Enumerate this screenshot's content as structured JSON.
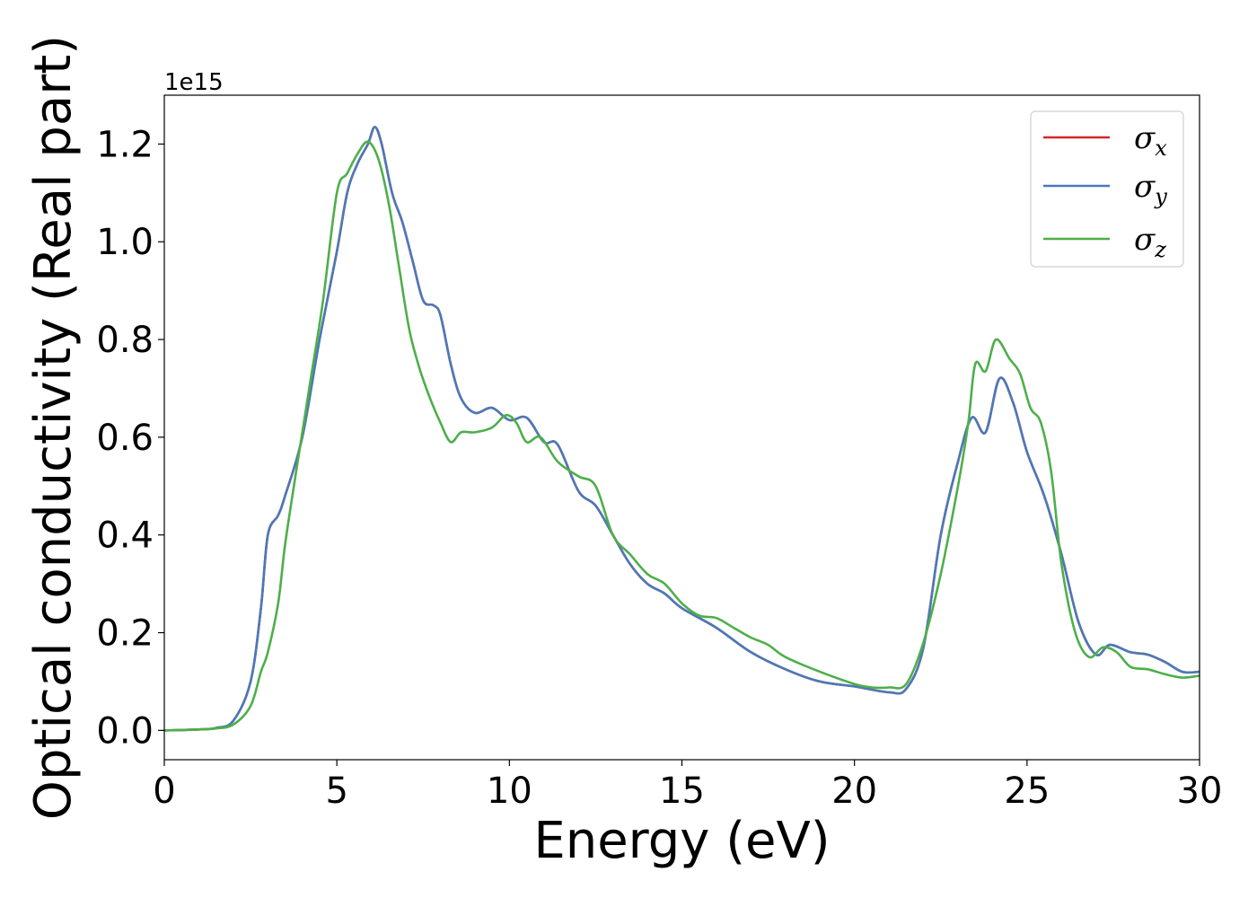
{
  "chart_data": {
    "type": "line",
    "title": "",
    "xlabel": "Energy (eV)",
    "ylabel": "Optical conductivity (Real part)",
    "y_offset_label": "1e15",
    "xlim": [
      0,
      30
    ],
    "ylim": [
      -0.06,
      1.3
    ],
    "xticks": [
      0,
      5,
      10,
      15,
      20,
      25,
      30
    ],
    "xtick_labels": [
      "0",
      "5",
      "10",
      "15",
      "20",
      "25",
      "30"
    ],
    "yticks": [
      0.0,
      0.2,
      0.4,
      0.6,
      0.8,
      1.0,
      1.2
    ],
    "ytick_labels": [
      "0.0",
      "0.2",
      "0.4",
      "0.6",
      "0.8",
      "1.0",
      "1.2"
    ],
    "grid": false,
    "legend_position": "top-right",
    "series": [
      {
        "name": "σ",
        "subscript": "x",
        "color": "#d62728",
        "points": [
          [
            0,
            0
          ],
          [
            1,
            0.002
          ],
          [
            1.5,
            0.005
          ],
          [
            2,
            0.02
          ],
          [
            2.5,
            0.1
          ],
          [
            2.8,
            0.25
          ],
          [
            3.0,
            0.4
          ],
          [
            3.3,
            0.44
          ],
          [
            3.5,
            0.48
          ],
          [
            4.0,
            0.6
          ],
          [
            4.5,
            0.8
          ],
          [
            5.0,
            0.98
          ],
          [
            5.3,
            1.1
          ],
          [
            5.6,
            1.16
          ],
          [
            5.9,
            1.2
          ],
          [
            6.1,
            1.235
          ],
          [
            6.3,
            1.2
          ],
          [
            6.6,
            1.1
          ],
          [
            6.9,
            1.04
          ],
          [
            7.2,
            0.96
          ],
          [
            7.5,
            0.88
          ],
          [
            7.8,
            0.87
          ],
          [
            8.0,
            0.85
          ],
          [
            8.3,
            0.75
          ],
          [
            8.6,
            0.68
          ],
          [
            9.0,
            0.65
          ],
          [
            9.5,
            0.66
          ],
          [
            10.0,
            0.635
          ],
          [
            10.5,
            0.64
          ],
          [
            11.0,
            0.59
          ],
          [
            11.4,
            0.585
          ],
          [
            12.0,
            0.49
          ],
          [
            12.5,
            0.46
          ],
          [
            13.0,
            0.4
          ],
          [
            13.5,
            0.34
          ],
          [
            14.0,
            0.3
          ],
          [
            14.5,
            0.28
          ],
          [
            15.0,
            0.25
          ],
          [
            16.0,
            0.21
          ],
          [
            17.0,
            0.16
          ],
          [
            18.0,
            0.125
          ],
          [
            19.0,
            0.1
          ],
          [
            20.0,
            0.09
          ],
          [
            21.0,
            0.078
          ],
          [
            21.5,
            0.085
          ],
          [
            22.0,
            0.17
          ],
          [
            22.5,
            0.4
          ],
          [
            23.0,
            0.55
          ],
          [
            23.4,
            0.64
          ],
          [
            23.8,
            0.61
          ],
          [
            24.2,
            0.72
          ],
          [
            24.6,
            0.67
          ],
          [
            25.0,
            0.57
          ],
          [
            25.5,
            0.48
          ],
          [
            26.0,
            0.36
          ],
          [
            26.5,
            0.22
          ],
          [
            27.0,
            0.155
          ],
          [
            27.4,
            0.175
          ],
          [
            28.0,
            0.16
          ],
          [
            28.5,
            0.155
          ],
          [
            29.0,
            0.14
          ],
          [
            29.5,
            0.12
          ],
          [
            30.0,
            0.12
          ]
        ]
      },
      {
        "name": "σ",
        "subscript": "y",
        "color": "#4a7ab8",
        "points": [
          [
            0,
            0
          ],
          [
            1,
            0.002
          ],
          [
            1.5,
            0.005
          ],
          [
            2,
            0.02
          ],
          [
            2.5,
            0.1
          ],
          [
            2.8,
            0.25
          ],
          [
            3.0,
            0.4
          ],
          [
            3.3,
            0.44
          ],
          [
            3.5,
            0.48
          ],
          [
            4.0,
            0.6
          ],
          [
            4.5,
            0.8
          ],
          [
            5.0,
            0.98
          ],
          [
            5.3,
            1.1
          ],
          [
            5.6,
            1.16
          ],
          [
            5.9,
            1.2
          ],
          [
            6.1,
            1.235
          ],
          [
            6.3,
            1.2
          ],
          [
            6.6,
            1.1
          ],
          [
            6.9,
            1.04
          ],
          [
            7.2,
            0.96
          ],
          [
            7.5,
            0.88
          ],
          [
            7.8,
            0.87
          ],
          [
            8.0,
            0.85
          ],
          [
            8.3,
            0.75
          ],
          [
            8.6,
            0.68
          ],
          [
            9.0,
            0.65
          ],
          [
            9.5,
            0.66
          ],
          [
            10.0,
            0.635
          ],
          [
            10.5,
            0.64
          ],
          [
            11.0,
            0.59
          ],
          [
            11.4,
            0.585
          ],
          [
            12.0,
            0.49
          ],
          [
            12.5,
            0.46
          ],
          [
            13.0,
            0.4
          ],
          [
            13.5,
            0.34
          ],
          [
            14.0,
            0.3
          ],
          [
            14.5,
            0.28
          ],
          [
            15.0,
            0.25
          ],
          [
            16.0,
            0.21
          ],
          [
            17.0,
            0.16
          ],
          [
            18.0,
            0.125
          ],
          [
            19.0,
            0.1
          ],
          [
            20.0,
            0.09
          ],
          [
            21.0,
            0.078
          ],
          [
            21.5,
            0.085
          ],
          [
            22.0,
            0.17
          ],
          [
            22.5,
            0.4
          ],
          [
            23.0,
            0.55
          ],
          [
            23.4,
            0.64
          ],
          [
            23.8,
            0.61
          ],
          [
            24.2,
            0.72
          ],
          [
            24.6,
            0.67
          ],
          [
            25.0,
            0.57
          ],
          [
            25.5,
            0.48
          ],
          [
            26.0,
            0.36
          ],
          [
            26.5,
            0.22
          ],
          [
            27.0,
            0.155
          ],
          [
            27.4,
            0.175
          ],
          [
            28.0,
            0.16
          ],
          [
            28.5,
            0.155
          ],
          [
            29.0,
            0.14
          ],
          [
            29.5,
            0.12
          ],
          [
            30.0,
            0.12
          ]
        ]
      },
      {
        "name": "σ",
        "subscript": "z",
        "color": "#4daf4a",
        "points": [
          [
            0,
            0
          ],
          [
            1,
            0.002
          ],
          [
            1.5,
            0.004
          ],
          [
            2,
            0.012
          ],
          [
            2.5,
            0.05
          ],
          [
            2.8,
            0.12
          ],
          [
            3.0,
            0.16
          ],
          [
            3.3,
            0.26
          ],
          [
            3.5,
            0.38
          ],
          [
            3.8,
            0.52
          ],
          [
            4.2,
            0.7
          ],
          [
            4.6,
            0.88
          ],
          [
            5.0,
            1.1
          ],
          [
            5.3,
            1.14
          ],
          [
            5.6,
            1.18
          ],
          [
            5.9,
            1.205
          ],
          [
            6.2,
            1.17
          ],
          [
            6.5,
            1.08
          ],
          [
            6.8,
            0.95
          ],
          [
            7.1,
            0.82
          ],
          [
            7.4,
            0.74
          ],
          [
            7.7,
            0.68
          ],
          [
            8.0,
            0.63
          ],
          [
            8.3,
            0.59
          ],
          [
            8.6,
            0.61
          ],
          [
            9.0,
            0.61
          ],
          [
            9.5,
            0.62
          ],
          [
            9.9,
            0.645
          ],
          [
            10.2,
            0.63
          ],
          [
            10.5,
            0.59
          ],
          [
            10.9,
            0.6
          ],
          [
            11.4,
            0.55
          ],
          [
            12.0,
            0.52
          ],
          [
            12.5,
            0.5
          ],
          [
            13.0,
            0.4
          ],
          [
            13.5,
            0.36
          ],
          [
            14.0,
            0.32
          ],
          [
            14.5,
            0.3
          ],
          [
            15.0,
            0.26
          ],
          [
            15.5,
            0.235
          ],
          [
            16.0,
            0.23
          ],
          [
            16.5,
            0.21
          ],
          [
            17.0,
            0.19
          ],
          [
            17.5,
            0.175
          ],
          [
            18.0,
            0.15
          ],
          [
            19.0,
            0.12
          ],
          [
            20.0,
            0.095
          ],
          [
            20.5,
            0.088
          ],
          [
            21.0,
            0.088
          ],
          [
            21.5,
            0.095
          ],
          [
            22.0,
            0.18
          ],
          [
            22.5,
            0.32
          ],
          [
            23.0,
            0.5
          ],
          [
            23.3,
            0.63
          ],
          [
            23.5,
            0.75
          ],
          [
            23.8,
            0.735
          ],
          [
            24.1,
            0.8
          ],
          [
            24.5,
            0.76
          ],
          [
            24.8,
            0.73
          ],
          [
            25.1,
            0.66
          ],
          [
            25.4,
            0.63
          ],
          [
            25.7,
            0.53
          ],
          [
            26.0,
            0.34
          ],
          [
            26.4,
            0.2
          ],
          [
            26.8,
            0.15
          ],
          [
            27.2,
            0.17
          ],
          [
            27.6,
            0.16
          ],
          [
            28.0,
            0.13
          ],
          [
            28.5,
            0.125
          ],
          [
            29.0,
            0.115
          ],
          [
            29.5,
            0.108
          ],
          [
            30.0,
            0.112
          ]
        ]
      }
    ]
  }
}
